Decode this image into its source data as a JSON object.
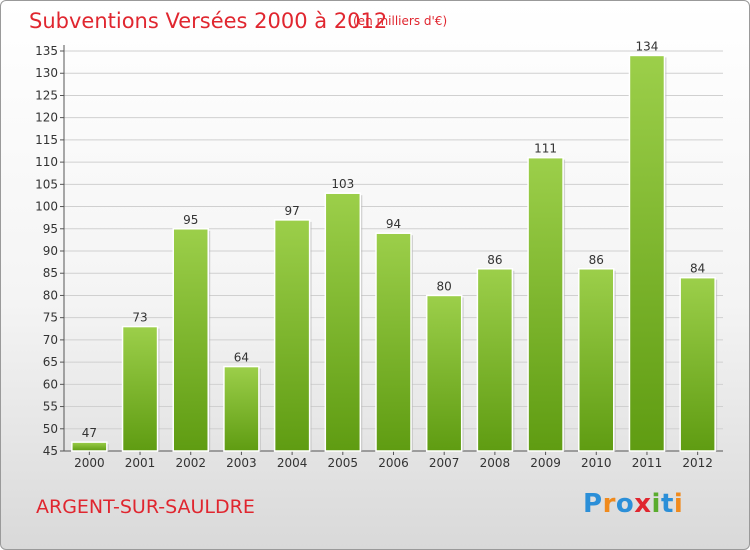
{
  "header": {
    "title": "Subventions Versées 2000 à 2012",
    "unit": "(en milliers d'€)"
  },
  "footer": {
    "commune": "ARGENT-SUR-SAULDRE",
    "logo": {
      "text": "Proxiti",
      "letters": [
        {
          "char": "P",
          "color": "#2b8fd8"
        },
        {
          "char": "r",
          "color": "#f08a1c"
        },
        {
          "char": "o",
          "color": "#2b8fd8"
        },
        {
          "char": "x",
          "color": "#e0262f"
        },
        {
          "char": "i",
          "color": "#5aac2e"
        },
        {
          "char": "t",
          "color": "#2b8fd8"
        },
        {
          "char": "i",
          "color": "#f08a1c"
        }
      ]
    }
  },
  "colors": {
    "bar_top": "#9ccf4a",
    "bar_bottom": "#5f9c12",
    "grid": "#d0d0d0",
    "text": "#333333"
  },
  "chart_data": {
    "type": "bar",
    "categories": [
      "2000",
      "2001",
      "2002",
      "2003",
      "2004",
      "2005",
      "2006",
      "2007",
      "2008",
      "2009",
      "2010",
      "2011",
      "2012"
    ],
    "values": [
      47,
      73,
      95,
      64,
      97,
      103,
      94,
      80,
      86,
      111,
      86,
      134,
      84
    ],
    "ylim": [
      45,
      135
    ],
    "ytick_step": 5,
    "grid": true
  }
}
